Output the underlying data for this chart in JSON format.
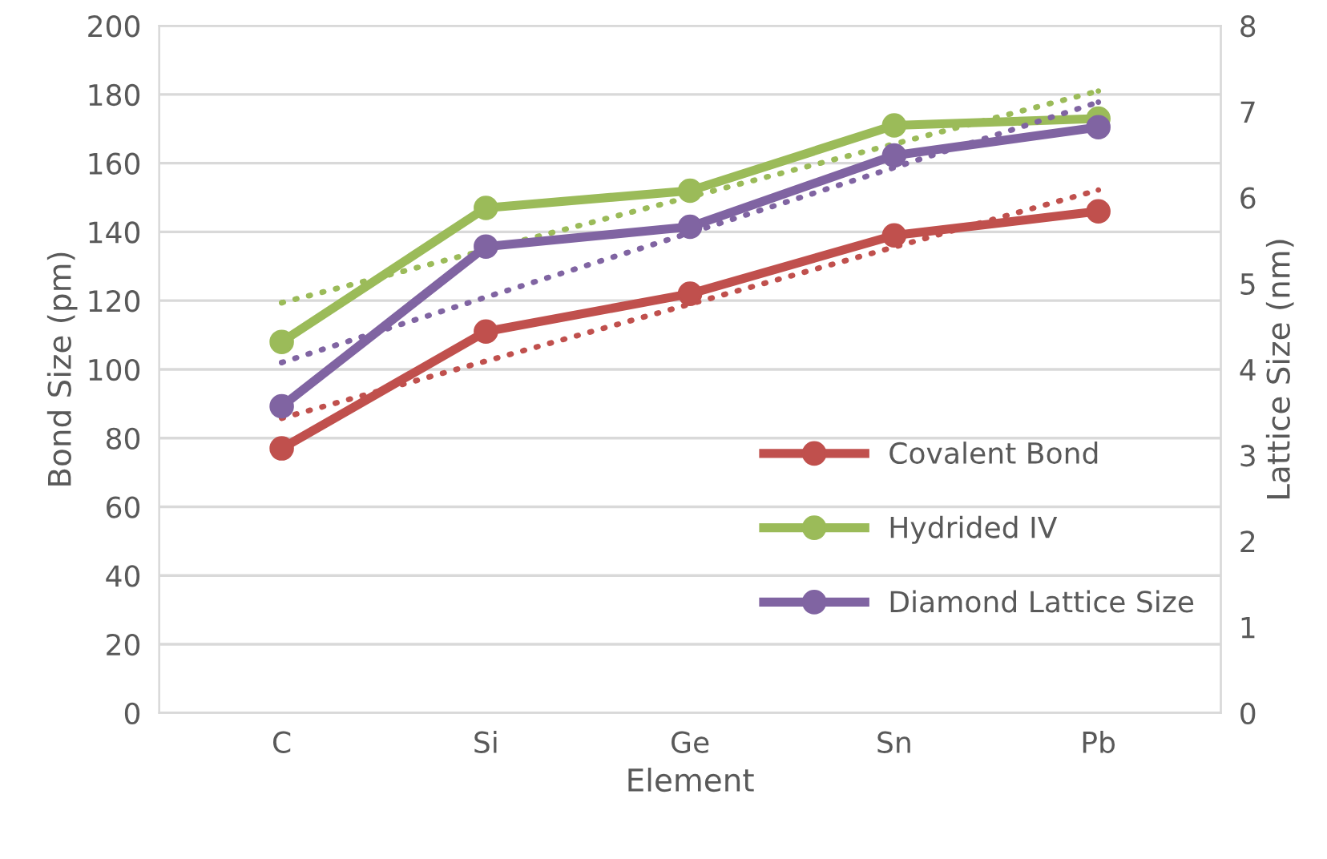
{
  "chart_data": {
    "type": "line",
    "xlabel": "Element",
    "ylabel": "Bond Size (pm)",
    "y2label": "Lattice Size (nm)",
    "categories": [
      "C",
      "Si",
      "Ge",
      "Sn",
      "Pb"
    ],
    "series": [
      {
        "name": "Covalent Bond",
        "color": "#c0504d",
        "values": [
          77,
          111,
          122,
          139,
          146
        ]
      },
      {
        "name": "Hydrided IV",
        "color": "#9bbb59",
        "values": [
          108,
          147,
          152,
          171,
          173
        ]
      },
      {
        "name": "Diamond Lattice Size",
        "color": "#8064a2",
        "axis": "y2",
        "values": [
          3.57,
          5.43,
          5.66,
          6.49,
          6.82
        ]
      },
      {
        "color": "#c0504d",
        "x": [
          "C",
          "Si",
          "Ge",
          "Sn",
          "Pb"
        ],
        "values": [
          85.8,
          102.4,
          119,
          135.6,
          152.2
        ],
        "marker": "none",
        "line_style": "dotted"
      },
      {
        "color": "#9bbb59",
        "x": [
          "C",
          "Si",
          "Ge",
          "Sn",
          "Pb"
        ],
        "values": [
          119.4,
          134.8,
          150.2,
          165.6,
          181
        ],
        "marker": "none",
        "line_style": "dotted"
      },
      {
        "color": "#8064a2",
        "axis": "y2",
        "x": [
          "C",
          "Si",
          "Ge",
          "Sn",
          "Pb"
        ],
        "values": [
          4.08,
          4.84,
          5.59,
          6.35,
          7.11
        ],
        "marker": "none",
        "line_style": "dotted"
      }
    ],
    "ylim": [
      0,
      200
    ],
    "yticks": [
      0,
      20,
      40,
      60,
      80,
      100,
      120,
      140,
      160,
      180,
      200
    ],
    "y2lim": [
      0,
      8
    ],
    "y2ticks": [
      0,
      1,
      2,
      3,
      4,
      5,
      6,
      7,
      8
    ],
    "grid": "y",
    "legend": "right",
    "marker": "circle",
    "line_style": "solid"
  }
}
